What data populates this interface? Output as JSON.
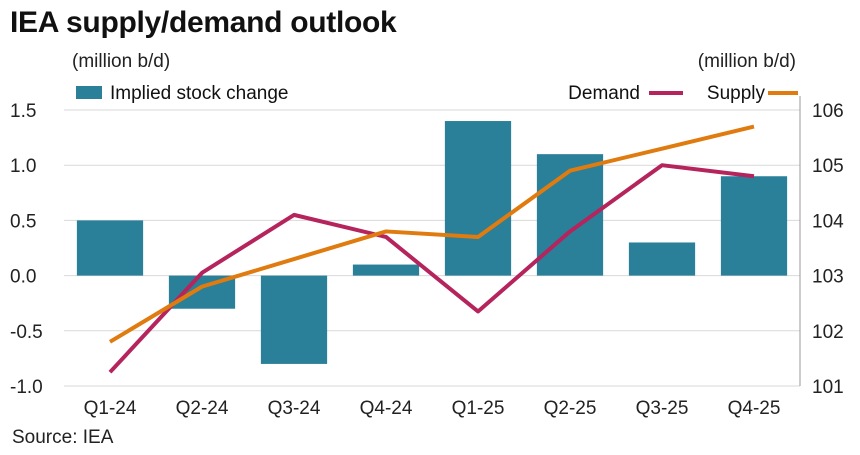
{
  "title": "IEA supply/demand outlook",
  "source": "Source: IEA",
  "colors": {
    "bar": "#2a7f99",
    "demand": "#b5245c",
    "supply": "#e07b10",
    "grid": "#d9d9d9",
    "axis": "#999999"
  },
  "chart_data": {
    "type": "bar+line",
    "categories": [
      "Q1-24",
      "Q2-24",
      "Q3-24",
      "Q4-24",
      "Q1-25",
      "Q2-25",
      "Q3-25",
      "Q4-25"
    ],
    "left_axis": {
      "unit_label": "(million b/d)",
      "ylim": [
        -1.0,
        1.5
      ],
      "ticks": [
        "-1.0",
        "-0.5",
        "0.0",
        "0.5",
        "1.0",
        "1.5"
      ]
    },
    "right_axis": {
      "unit_label": "(million b/d)",
      "ylim": [
        101,
        106
      ],
      "ticks": [
        "101",
        "102",
        "103",
        "104",
        "105",
        "106"
      ]
    },
    "series": [
      {
        "name": "Implied stock change",
        "kind": "bar",
        "axis": "left",
        "values": [
          0.5,
          -0.3,
          -0.8,
          0.1,
          1.4,
          1.1,
          0.3,
          0.9
        ]
      },
      {
        "name": "Demand",
        "kind": "line",
        "axis": "right",
        "values": [
          101.25,
          103.05,
          104.1,
          103.7,
          102.35,
          103.8,
          105.0,
          104.8
        ]
      },
      {
        "name": "Supply",
        "kind": "line",
        "axis": "right",
        "values": [
          101.8,
          102.8,
          103.3,
          103.8,
          103.7,
          104.9,
          105.3,
          105.7
        ]
      }
    ],
    "grid": true,
    "legend": "top"
  }
}
